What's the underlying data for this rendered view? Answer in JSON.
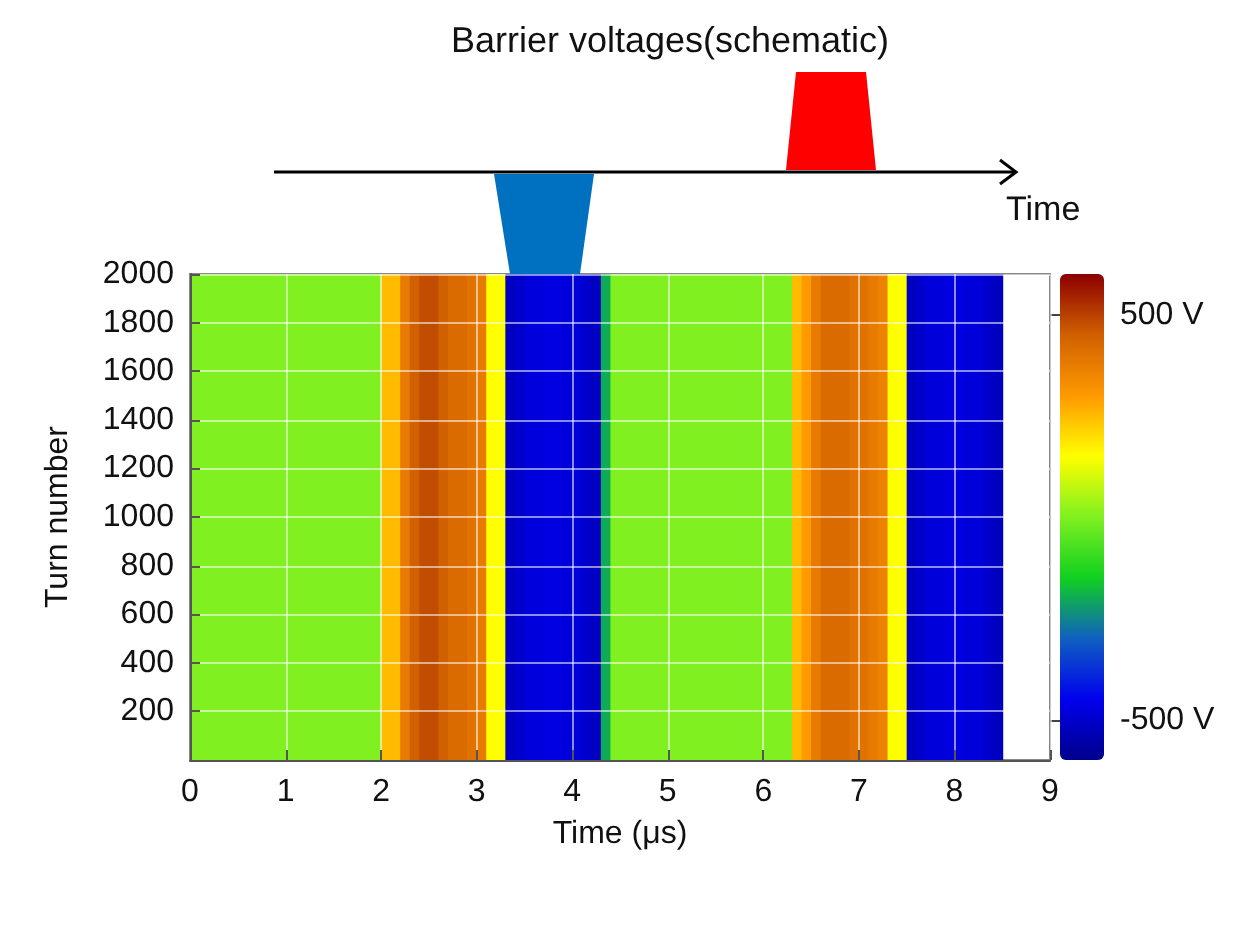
{
  "chart_data": {
    "type": "heatmap",
    "title": "Barrier voltages(schematic)",
    "xlabel": "Time (μs)",
    "ylabel": "Turn number",
    "annotations": [
      "Time"
    ],
    "x": [
      0.05,
      0.15,
      0.25,
      0.35,
      0.45,
      0.55,
      0.65,
      0.75,
      0.85,
      0.95,
      1.05,
      1.15,
      1.25,
      1.35,
      1.45,
      1.55,
      1.65,
      1.75,
      1.85,
      1.95,
      2.05,
      2.15,
      2.25,
      2.35,
      2.45,
      2.55,
      2.65,
      2.75,
      2.85,
      2.95,
      3.05,
      3.15,
      3.25,
      3.35,
      3.45,
      3.55,
      3.65,
      3.75,
      3.85,
      3.95,
      4.05,
      4.15,
      4.25,
      4.35,
      4.45,
      4.55,
      4.65,
      4.75,
      4.85,
      4.95,
      5.05,
      5.15,
      5.25,
      5.35,
      5.45,
      5.55,
      5.65,
      5.75,
      5.85,
      5.95,
      6.05,
      6.15,
      6.25,
      6.35,
      6.45,
      6.55,
      6.65,
      6.75,
      6.85,
      6.95,
      7.05,
      7.15,
      7.25,
      7.35,
      7.45,
      7.55,
      7.65,
      7.75,
      7.85,
      7.95,
      8.05,
      8.15,
      8.25,
      8.35,
      8.45
    ],
    "cells": [
      [
        0,
        0,
        0,
        0,
        0,
        0,
        0,
        0,
        0,
        0,
        0,
        0,
        0,
        0,
        0,
        0,
        0,
        0,
        0,
        0,
        250,
        250,
        380,
        450,
        480,
        480,
        450,
        420,
        420,
        400,
        380,
        150,
        150,
        -520,
        -500,
        -480,
        -480,
        -470,
        -470,
        -480,
        -480,
        -500,
        -520,
        -200,
        0,
        0,
        0,
        0,
        0,
        0,
        0,
        0,
        0,
        0,
        0,
        0,
        0,
        0,
        0,
        0,
        0,
        0,
        0,
        250,
        300,
        380,
        420,
        420,
        420,
        400,
        400,
        380,
        360,
        150,
        150,
        -520,
        -500,
        -480,
        -480,
        -470,
        -470,
        -480,
        -480,
        -500,
        -520
      ]
    ],
    "xlim": [
      0,
      9
    ],
    "xticks": [
      0,
      1,
      2,
      3,
      4,
      5,
      6,
      7,
      8,
      9
    ],
    "ylim": [
      0,
      2000
    ],
    "yticks": [
      200,
      400,
      600,
      800,
      1000,
      1200,
      1400,
      1600,
      1800,
      2000
    ],
    "clim": [
      -600,
      600
    ],
    "cticks": [
      {
        "value": 500,
        "label": "500 V"
      },
      {
        "value": -500,
        "label": "-500 V"
      }
    ],
    "grid": true
  }
}
